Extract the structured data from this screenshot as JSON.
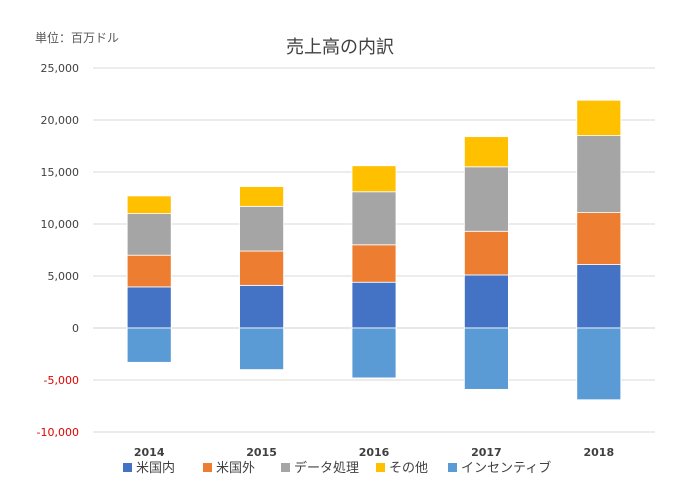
{
  "chart_data": {
    "type": "bar",
    "stacked": true,
    "title": "売上高の内訳",
    "unit_label": "単位：百万ドル",
    "categories": [
      "2014",
      "2015",
      "2016",
      "2017",
      "2018"
    ],
    "ylim": [
      -10000,
      25000
    ],
    "yticks": [
      25000,
      20000,
      15000,
      10000,
      5000,
      0,
      -5000,
      -10000
    ],
    "ytick_labels": [
      "25,000",
      "20,000",
      "15,000",
      "10,000",
      "5,000",
      "0",
      "-5,000",
      "-10,000"
    ],
    "grid": true,
    "legend_position": "bottom",
    "negative_tick_color": "#e00000",
    "series": [
      {
        "name": "米国内",
        "color": "#4472c4",
        "values": [
          3950,
          4100,
          4400,
          5100,
          6100
        ]
      },
      {
        "name": "米国外",
        "color": "#ed7d31",
        "values": [
          3050,
          3300,
          3600,
          4200,
          5000
        ]
      },
      {
        "name": "データ処理",
        "color": "#a5a5a5",
        "values": [
          4000,
          4300,
          5100,
          6200,
          7400
        ]
      },
      {
        "name": "その他",
        "color": "#ffc000",
        "values": [
          1700,
          1900,
          2500,
          2900,
          3400
        ]
      },
      {
        "name": "インセンティブ",
        "color": "#5b9bd5",
        "values": [
          -3300,
          -4000,
          -4800,
          -5900,
          -6900
        ]
      }
    ]
  }
}
